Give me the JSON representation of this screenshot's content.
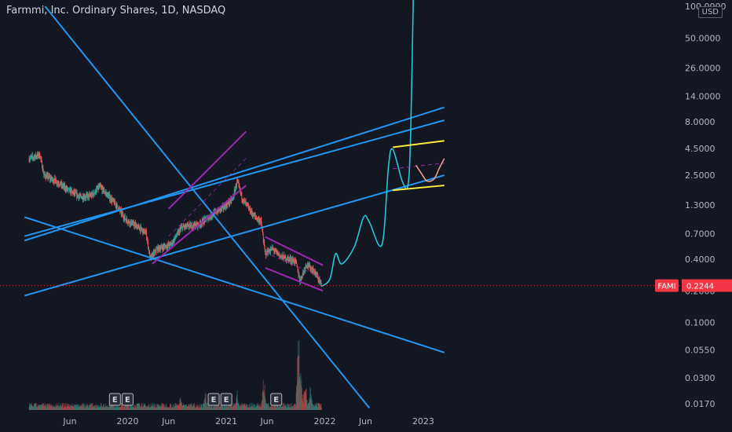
{
  "header": {
    "title": "Farmmi, Inc. Ordinary Shares, 1D, NASDAQ",
    "currency": "USD"
  },
  "colors": {
    "background": "#131722",
    "up": "#26a69a",
    "down": "#ef5350",
    "trendline": "#2196f3",
    "channel": "#9c27b0",
    "projection": "#26c6da",
    "box": "#ffeb3b",
    "arc": "#ffab91",
    "price_tag": "#f23645"
  },
  "chart_data": {
    "type": "candlestick",
    "scale": "log",
    "yticks": [
      "100.0000",
      "50.0000",
      "26.0000",
      "14.0000",
      "8.0000",
      "4.5000",
      "2.5000",
      "1.3000",
      "0.7000",
      "0.4000",
      "0.2000",
      "0.1000",
      "0.0550",
      "0.0300",
      "0.0170"
    ],
    "xticks": [
      "Jun",
      "2020",
      "Jun",
      "2021",
      "Jun",
      "2022",
      "Jun",
      "2023"
    ],
    "earnings_markers": [
      "E",
      "E",
      "E",
      "E",
      "E"
    ],
    "last_price": {
      "symbol": "FAMI",
      "value": "0.2244"
    },
    "price_path": [
      [
        "2019-01-01",
        3.6
      ],
      [
        "2019-02-10",
        3.9
      ],
      [
        "2019-02-25",
        2.5
      ],
      [
        "2019-04-10",
        2.2
      ],
      [
        "2019-05-20",
        1.85
      ],
      [
        "2019-07-10",
        1.55
      ],
      [
        "2019-08-20",
        1.6
      ],
      [
        "2019-09-20",
        1.95
      ],
      [
        "2019-10-25",
        1.55
      ],
      [
        "2019-11-20",
        1.3
      ],
      [
        "2019-12-25",
        0.95
      ],
      [
        "2020-02-10",
        0.8
      ],
      [
        "2020-03-10",
        0.7
      ],
      [
        "2020-03-25",
        0.4
      ],
      [
        "2020-04-20",
        0.5
      ],
      [
        "2020-06-10",
        0.55
      ],
      [
        "2020-07-20",
        0.8
      ],
      [
        "2020-09-20",
        0.85
      ],
      [
        "2020-11-20",
        1.1
      ],
      [
        "2020-12-25",
        1.25
      ],
      [
        "2021-01-25",
        1.5
      ],
      [
        "2021-02-10",
        2.2
      ],
      [
        "2021-03-01",
        1.5
      ],
      [
        "2021-04-10",
        1.05
      ],
      [
        "2021-05-10",
        0.9
      ],
      [
        "2021-05-25",
        0.45
      ],
      [
        "2021-06-20",
        0.5
      ],
      [
        "2021-07-25",
        0.42
      ],
      [
        "2021-08-20",
        0.4
      ],
      [
        "2021-09-15",
        0.38
      ],
      [
        "2021-10-01",
        0.25
      ],
      [
        "2021-10-25",
        0.36
      ],
      [
        "2021-11-25",
        0.3
      ],
      [
        "2021-12-20",
        0.2244
      ]
    ],
    "volume_spikes": [
      [
        "2020-07-15",
        0.15
      ],
      [
        "2020-10-15",
        0.2
      ],
      [
        "2021-02-10",
        0.2
      ],
      [
        "2021-05-20",
        0.4
      ],
      [
        "2021-09-25",
        1.0
      ],
      [
        "2021-10-05",
        0.45
      ],
      [
        "2021-10-20",
        0.4
      ],
      [
        "2021-11-10",
        0.3
      ]
    ],
    "drawings": {
      "trend_lines": [
        {
          "from": [
            "2018-12-15",
            1.0
          ],
          "to": [
            "2023-03-20",
            0.052
          ]
        },
        {
          "from": [
            "2019-03-01",
            100.0
          ],
          "to": [
            "2022-06-15",
            0.0155
          ]
        },
        {
          "from": [
            "2018-12-15",
            0.18
          ],
          "to": [
            "2023-03-20",
            2.5
          ]
        },
        {
          "from": [
            "2018-12-15",
            0.6
          ],
          "to": [
            "2023-03-20",
            11.0
          ]
        },
        {
          "from": [
            "2018-12-15",
            0.66
          ],
          "to": [
            "2023-03-20",
            8.3
          ]
        }
      ],
      "channels": [
        {
          "upper": [
            [
              "2020-06-01",
              1.2
            ],
            [
              "2021-03-15",
              6.5
            ]
          ],
          "lower": [
            [
              "2020-04-01",
              0.36
            ],
            [
              "2021-03-15",
              2.0
            ]
          ]
        },
        {
          "upper": [
            [
              "2021-05-25",
              0.65
            ],
            [
              "2021-12-25",
              0.35
            ]
          ],
          "lower": [
            [
              "2021-05-25",
              0.33
            ],
            [
              "2021-12-25",
              0.2
            ]
          ]
        }
      ],
      "projection_path": [
        [
          "2021-12-20",
          0.22
        ],
        [
          "2022-01-20",
          0.26
        ],
        [
          "2022-02-10",
          0.45
        ],
        [
          "2022-03-05",
          0.36
        ],
        [
          "2022-04-20",
          0.52
        ],
        [
          "2022-05-25",
          1.0
        ],
        [
          "2022-06-15",
          0.9
        ],
        [
          "2022-08-01",
          0.55
        ],
        [
          "2022-08-25",
          3.0
        ],
        [
          "2022-09-10",
          4.4
        ],
        [
          "2022-10-15",
          2.2
        ],
        [
          "2022-11-05",
          2.0
        ],
        [
          "2022-11-15",
          6.0
        ],
        [
          "2022-11-25",
          120.0
        ]
      ],
      "target_box": {
        "top": [
          [
            "2022-09-10",
            4.6
          ],
          [
            "2023-03-20",
            5.3
          ]
        ],
        "bottom": [
          [
            "2022-09-10",
            1.8
          ],
          [
            "2023-03-20",
            2.0
          ]
        ]
      },
      "arc": [
        [
          "2022-12-05",
          3.1
        ],
        [
          "2022-12-25",
          2.6
        ],
        [
          "2023-01-15",
          2.2
        ],
        [
          "2023-02-10",
          2.3
        ],
        [
          "2023-03-01",
          2.9
        ],
        [
          "2023-03-20",
          3.6
        ]
      ]
    }
  }
}
